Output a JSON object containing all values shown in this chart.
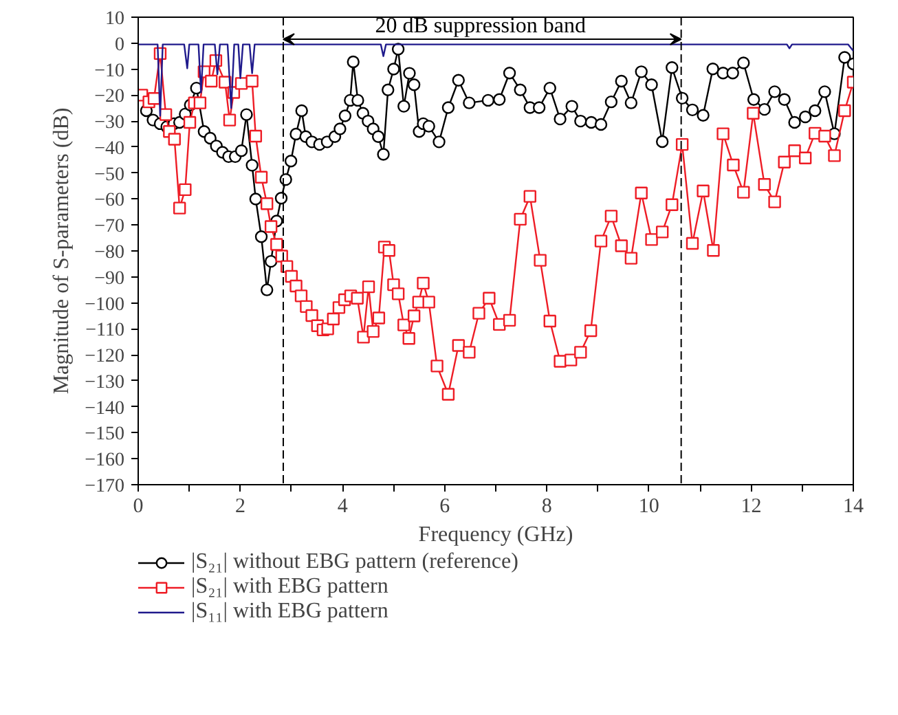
{
  "chart_data": {
    "type": "line",
    "xlabel": "Frequency (GHz)",
    "ylabel": "Magnitude of S-parameters (dB)",
    "xlim": [
      0,
      14
    ],
    "ylim": [
      -170,
      10
    ],
    "xticks": [
      0,
      {
        "value": 1,
        "label": null
      },
      2,
      {
        "value": 3,
        "label": null
      },
      4,
      {
        "value": 5,
        "label": null
      },
      6,
      {
        "value": 7,
        "label": null
      },
      8,
      {
        "value": 9,
        "label": null
      },
      10,
      {
        "value": 11,
        "label": null
      },
      12,
      {
        "value": 13,
        "label": null
      },
      14
    ],
    "yticks": [
      10,
      0,
      -10,
      -20,
      -30,
      -40,
      -50,
      -60,
      -70,
      -80,
      -90,
      -100,
      -110,
      -120,
      -130,
      -140,
      -150,
      -160,
      -170
    ],
    "grid": false,
    "legend": "bottom",
    "ref_lines": [
      {
        "axis": "x",
        "value": 2.84,
        "label": null,
        "line_style": "dashed",
        "color": "#000000"
      },
      {
        "axis": "x",
        "value": 10.63,
        "label": null,
        "line_style": "dashed",
        "color": "#000000"
      }
    ],
    "annotations": [
      {
        "text": "20 dB suppression band",
        "x": 6.7,
        "y": 1.5
      }
    ],
    "series": [
      {
        "name": "|S₂₁| without EBG pattern (reference)",
        "color": "#000000",
        "marker": "circle",
        "x": [
          0.16,
          0.29,
          0.43,
          0.56,
          0.7,
          0.81,
          0.92,
          1.02,
          1.14,
          1.29,
          1.41,
          1.53,
          1.65,
          1.77,
          1.9,
          2.02,
          2.12,
          2.23,
          2.3,
          2.41,
          2.52,
          2.6,
          2.71,
          2.8,
          2.89,
          2.99,
          3.09,
          3.2,
          3.28,
          3.4,
          3.55,
          3.7,
          3.85,
          3.95,
          4.05,
          4.15,
          4.21,
          4.3,
          4.4,
          4.5,
          4.6,
          4.7,
          4.8,
          4.89,
          5.0,
          5.09,
          5.2,
          5.31,
          5.4,
          5.5,
          5.58,
          5.69,
          5.89,
          6.07,
          6.27,
          6.48,
          6.85,
          7.07,
          7.27,
          7.48,
          7.67,
          7.85,
          8.06,
          8.26,
          8.49,
          8.66,
          8.87,
          9.06,
          9.26,
          9.46,
          9.65,
          9.85,
          10.05,
          10.26,
          10.45,
          10.65,
          10.85,
          11.06,
          11.25,
          11.45,
          11.64,
          11.85,
          12.05,
          12.26,
          12.46,
          12.65,
          12.85,
          13.06,
          13.25,
          13.44,
          13.63,
          13.83,
          14.0
        ],
        "values": [
          -26,
          -29.6,
          -31,
          -32.2,
          -31,
          -30.5,
          -27.3,
          -23.8,
          -17.3,
          -34,
          -36.6,
          -39.6,
          -42,
          -43.7,
          -43.7,
          -41.4,
          -27.5,
          -47,
          -60,
          -74.5,
          -95,
          -84,
          -68.5,
          -59.7,
          -52.5,
          -45.4,
          -35,
          -26,
          -36,
          -38,
          -39,
          -38,
          -36,
          -33,
          -28,
          -22,
          -7.2,
          -22,
          -27,
          -30,
          -33,
          -36,
          -42.8,
          -18,
          -10,
          -2.3,
          -24.3,
          -11.6,
          -16,
          -34,
          -31,
          -32,
          -38,
          -24.8,
          -14.3,
          -23,
          -22,
          -21.7,
          -11.5,
          -18,
          -24.8,
          -24.8,
          -17.3,
          -29.2,
          -24.3,
          -30,
          -30.5,
          -31.3,
          -22.6,
          -14.6,
          -23,
          -11,
          -16,
          -37.9,
          -9.4,
          -21.2,
          -25.7,
          -27.8,
          -9.9,
          -11.5,
          -11.5,
          -7.6,
          -21.7,
          -25.5,
          -18.7,
          -21.7,
          -30.5,
          -28.4,
          -26,
          -18.7,
          -34.9,
          -5.5,
          -8
        ]
      },
      {
        "name": "|S₂₁| with EBG pattern",
        "color": "#ee1c25",
        "marker": "square",
        "x": [
          0.07,
          0.21,
          0.31,
          0.43,
          0.54,
          0.61,
          0.71,
          0.81,
          0.92,
          1.01,
          1.1,
          1.21,
          1.29,
          1.43,
          1.52,
          1.7,
          1.79,
          1.87,
          2.02,
          2.23,
          2.3,
          2.41,
          2.52,
          2.6,
          2.71,
          2.81,
          2.91,
          3.0,
          3.09,
          3.19,
          3.29,
          3.4,
          3.51,
          3.62,
          3.71,
          3.82,
          3.93,
          4.04,
          4.16,
          4.29,
          4.41,
          4.51,
          4.6,
          4.71,
          4.82,
          4.91,
          5.0,
          5.09,
          5.2,
          5.3,
          5.4,
          5.49,
          5.58,
          5.69,
          5.85,
          6.07,
          6.27,
          6.48,
          6.67,
          6.87,
          7.07,
          7.27,
          7.48,
          7.67,
          7.87,
          8.06,
          8.26,
          8.47,
          8.66,
          8.86,
          9.06,
          9.26,
          9.46,
          9.65,
          9.85,
          10.05,
          10.26,
          10.45,
          10.65,
          10.85,
          11.06,
          11.26,
          11.45,
          11.65,
          11.85,
          12.04,
          12.26,
          12.46,
          12.65,
          12.85,
          13.06,
          13.25,
          13.44,
          13.63,
          13.83,
          14.0
        ],
        "values": [
          -20,
          -22.6,
          -21.3,
          -4,
          -27.5,
          -34,
          -37,
          -63.5,
          -56.4,
          -30.5,
          -23,
          -23,
          -11,
          -14.6,
          -6.7,
          -15,
          -29.6,
          -19,
          -15.5,
          -14.6,
          -35.8,
          -51.6,
          -61.8,
          -70.6,
          -77.5,
          -82,
          -86,
          -89.8,
          -93.5,
          -97.3,
          -101.4,
          -104.9,
          -108.8,
          -110.4,
          -110,
          -106.2,
          -101.8,
          -98.8,
          -97.3,
          -98.2,
          -113.2,
          -93.8,
          -111,
          -105.8,
          -78.5,
          -79.8,
          -93,
          -96.5,
          -108.5,
          -113.7,
          -105,
          -99.7,
          -92.4,
          -99.7,
          -124.3,
          -135.2,
          -116.4,
          -119,
          -104,
          -98.2,
          -108.3,
          -106.7,
          -67.8,
          -59,
          -83.6,
          -107,
          -122.5,
          -122,
          -119,
          -110.7,
          -76.2,
          -66.6,
          -78,
          -82.8,
          -57.7,
          -75.6,
          -72.7,
          -62.2,
          -39,
          -77.1,
          -56.9,
          -79.8,
          -34.9,
          -46.9,
          -57.4,
          -27,
          -54.4,
          -61.1,
          -45.8,
          -41.4,
          -44.2,
          -34.7,
          -35.8,
          -43.3,
          -26,
          -15
        ]
      },
      {
        "name": "|S₁₁| with EBG pattern",
        "color": "#1f1a8c",
        "marker": "none",
        "x": [
          0.0,
          0.38,
          0.43,
          0.48,
          0.9,
          0.96,
          1.0,
          1.18,
          1.23,
          1.28,
          1.5,
          1.55,
          1.6,
          1.75,
          1.82,
          1.88,
          1.96,
          2.0,
          2.05,
          2.18,
          2.23,
          2.28,
          4.75,
          4.8,
          4.85,
          12.7,
          12.75,
          12.8,
          13.9,
          14.0
        ],
        "values": [
          -0.5,
          -0.5,
          -28,
          -0.5,
          -0.5,
          -9.7,
          -0.5,
          -0.5,
          -19,
          -0.5,
          -0.5,
          -12,
          -0.5,
          -0.5,
          -25,
          -0.5,
          -0.5,
          -13.5,
          -0.5,
          -0.5,
          -11.6,
          -0.5,
          -0.5,
          -5,
          -0.5,
          -0.5,
          -2,
          -0.5,
          -0.5,
          -3
        ]
      }
    ]
  }
}
